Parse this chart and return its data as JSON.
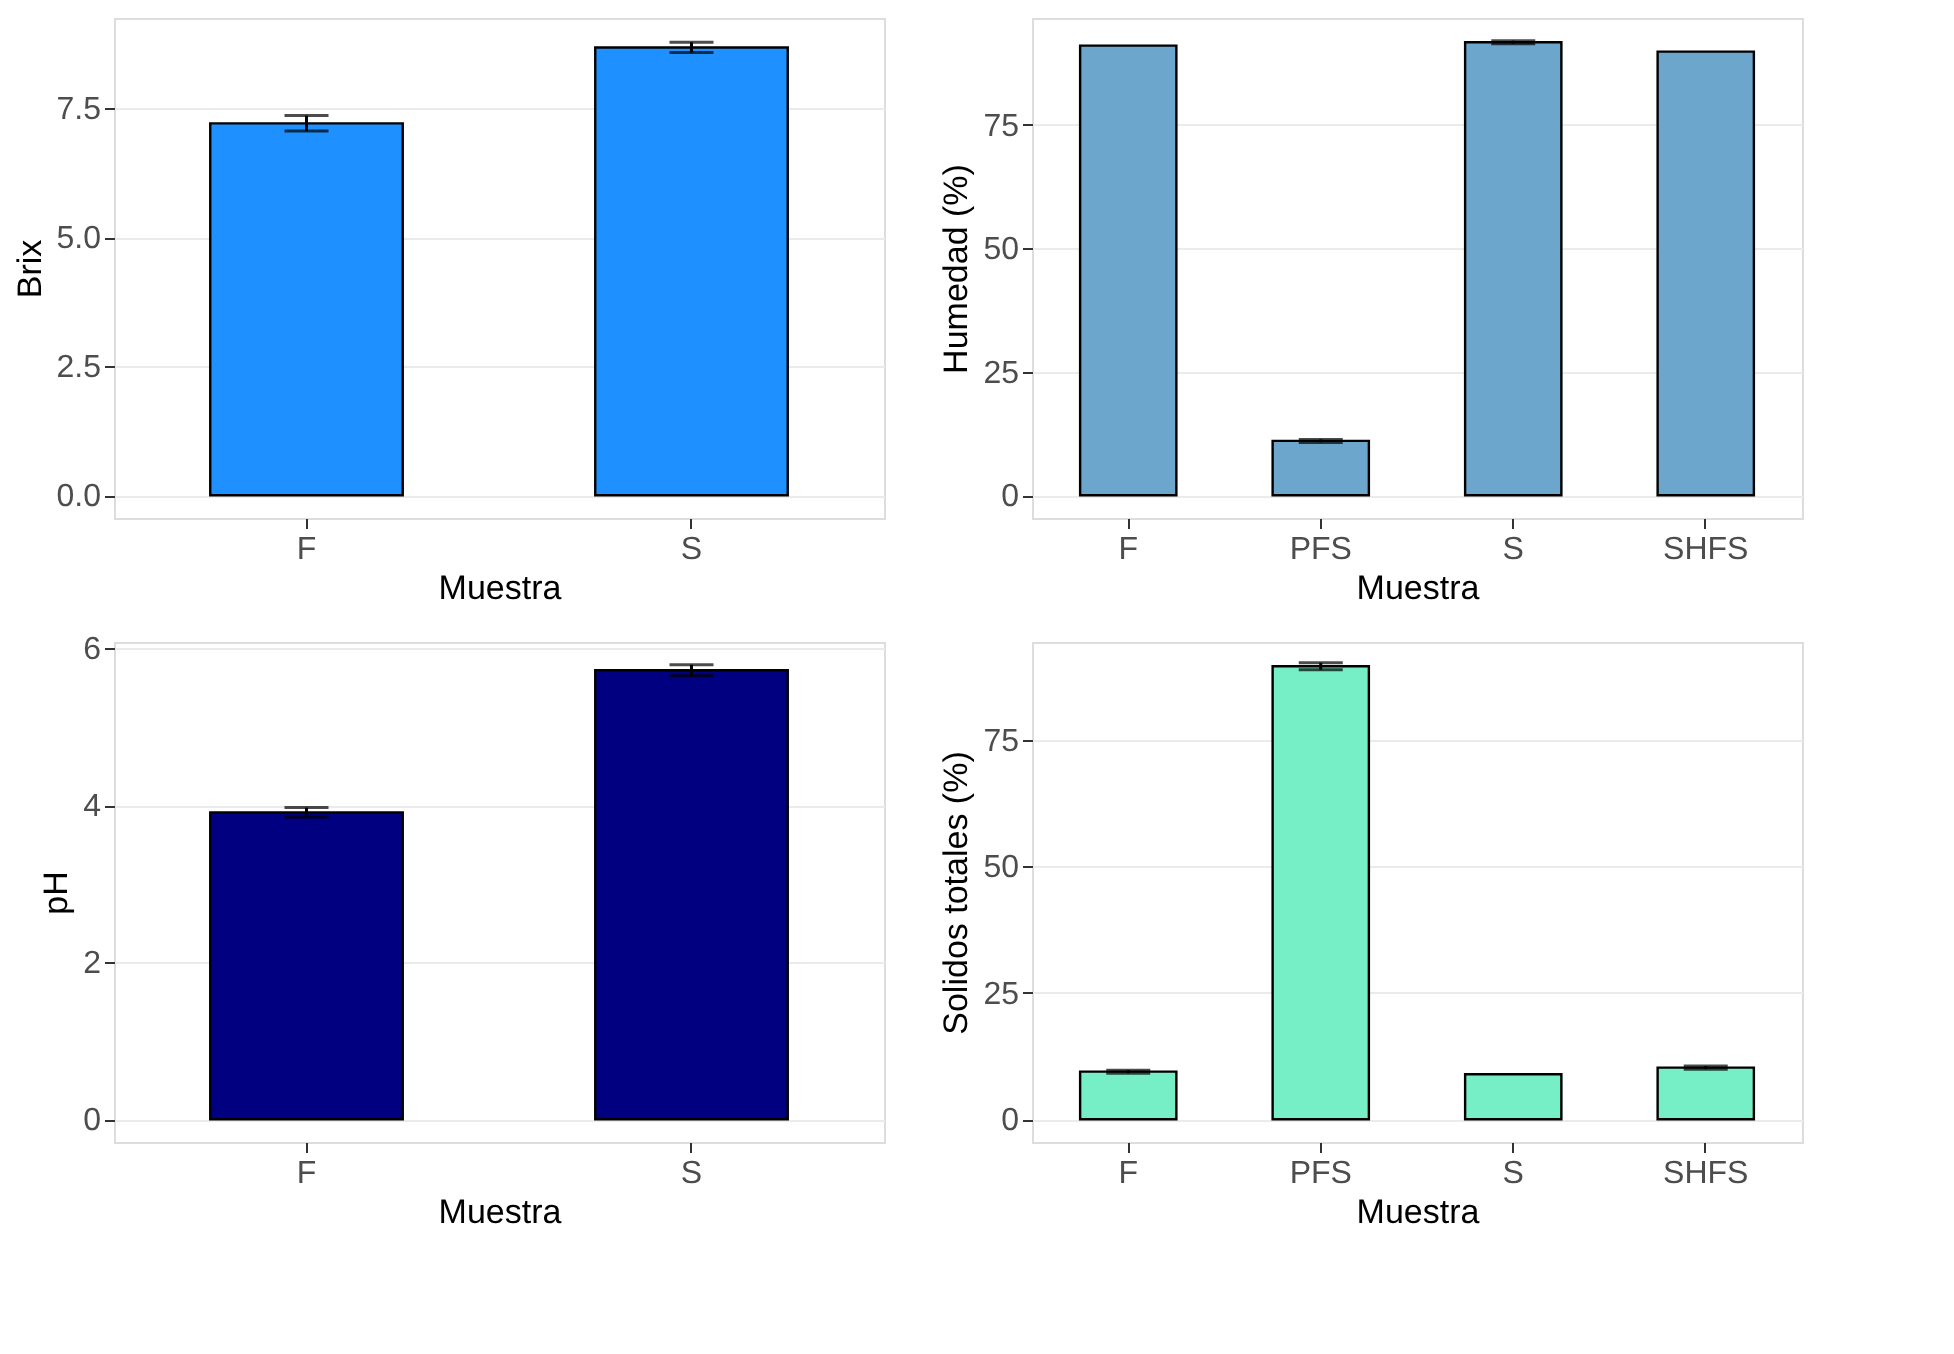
{
  "chart_data": [
    {
      "type": "bar",
      "xlabel": "Muestra",
      "ylabel": "Brix",
      "categories": [
        "F",
        "S"
      ],
      "values": [
        7.2,
        8.67
      ],
      "errors": [
        0.15,
        0.1
      ],
      "color": "#1e90ff",
      "ylim": [
        -0.44,
        9.24
      ],
      "yticks": [
        {
          "value": 0,
          "label": "0.0"
        },
        2.5,
        {
          "value": 5,
          "label": "5.0"
        },
        7.5
      ],
      "grid": "y"
    },
    {
      "type": "bar",
      "xlabel": "Muestra",
      "ylabel": "Humedad (%)",
      "categories": [
        "F",
        "PFS",
        "S",
        "SHFS"
      ],
      "values": [
        91.0,
        11.0,
        91.7,
        89.8
      ],
      "errors": [
        null,
        0.3,
        0.3,
        null
      ],
      "color": "#6ca6cd",
      "ylim": [
        -4.6,
        96.6
      ],
      "yticks": [
        0,
        25,
        50,
        75
      ],
      "grid": "y"
    },
    {
      "type": "bar",
      "xlabel": "Muestra",
      "ylabel": "pH",
      "categories": [
        "F",
        "S"
      ],
      "values": [
        3.91,
        5.72
      ],
      "errors": [
        0.06,
        0.07
      ],
      "color": "#000080",
      "ylim": [
        -0.29,
        6.08
      ],
      "yticks": [
        0,
        2,
        4,
        6
      ],
      "grid": "y"
    },
    {
      "type": "bar",
      "xlabel": "Muestra",
      "ylabel": "Solidos totales (%)",
      "categories": [
        "F",
        "PFS",
        "S",
        "SHFS"
      ],
      "values": [
        9.4,
        89.5,
        8.9,
        10.2
      ],
      "errors": [
        0.3,
        0.7,
        null,
        0.3
      ],
      "color": "#76eec6",
      "ylim": [
        -4.5,
        94.3
      ],
      "yticks": [
        0,
        25,
        50,
        75
      ],
      "grid": "y"
    }
  ]
}
